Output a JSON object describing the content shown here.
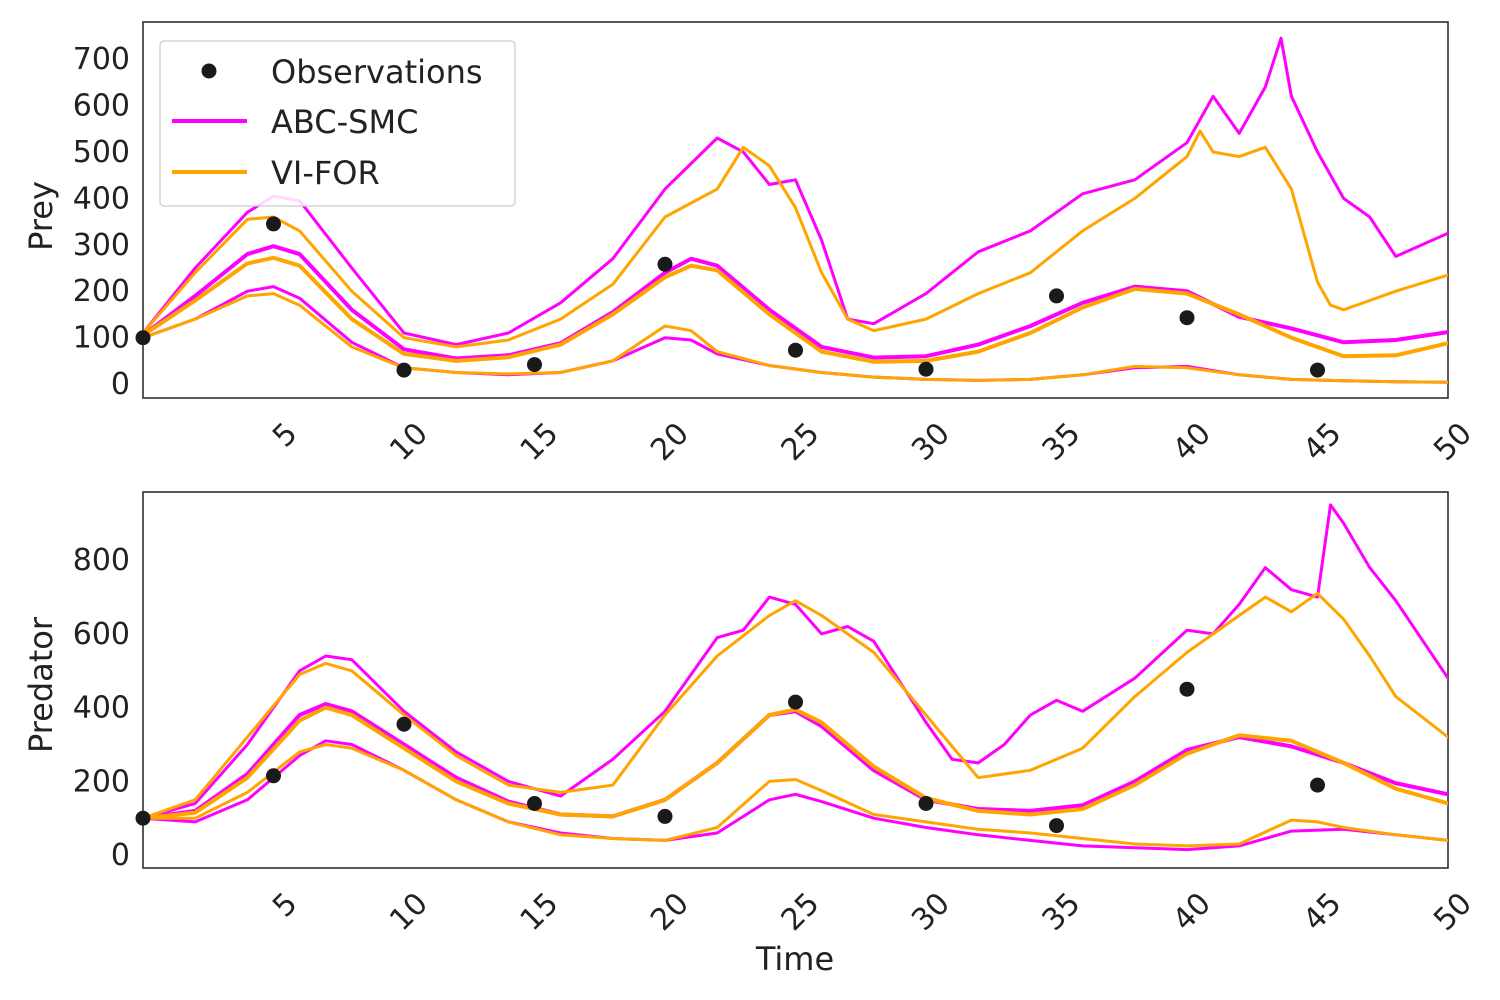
{
  "colors": {
    "observations": "#1a1a1a",
    "abc_smc": "#ff00ff",
    "vi_for": "#ffa500",
    "axes": "#222222"
  },
  "legend": {
    "observations": "Observations",
    "abc_smc": "ABC-SMC",
    "vi_for": "VI-FOR"
  },
  "chart_data": [
    {
      "type": "line",
      "ylabel": "Prey",
      "xlabel": "",
      "xlim": [
        0,
        50
      ],
      "ylim": [
        -30,
        780
      ],
      "xticks": [
        5,
        10,
        15,
        20,
        25,
        30,
        35,
        40,
        45,
        50
      ],
      "yticks": [
        0,
        100,
        200,
        300,
        400,
        500,
        600,
        700
      ],
      "grid": false,
      "legend_position": "top-left",
      "observations": {
        "name": "Observations",
        "x": [
          0,
          5,
          10,
          15,
          20,
          25,
          30,
          35,
          40,
          45
        ],
        "y": [
          100,
          345,
          30,
          42,
          258,
          73,
          32,
          190,
          143,
          30
        ]
      },
      "series": [
        {
          "name": "ABC-SMC",
          "group": "abc",
          "role": "mean",
          "x": [
            0,
            2,
            4,
            5,
            6,
            8,
            10,
            12,
            14,
            16,
            18,
            20,
            21,
            22,
            24,
            26,
            28,
            30,
            32,
            34,
            36,
            38,
            40,
            42,
            44,
            46,
            48,
            50
          ],
          "y": [
            105,
            190,
            280,
            297,
            280,
            160,
            75,
            55,
            62,
            88,
            155,
            240,
            270,
            255,
            160,
            80,
            57,
            60,
            85,
            125,
            175,
            210,
            200,
            145,
            120,
            90,
            95,
            112
          ]
        },
        {
          "group": "abc",
          "role": "upper",
          "x": [
            0,
            2,
            4,
            5,
            6,
            8,
            10,
            12,
            14,
            16,
            18,
            20,
            22,
            23,
            24,
            25,
            26,
            27,
            28,
            30,
            32,
            34,
            36,
            38,
            40,
            41,
            42,
            43,
            43.6,
            44,
            45,
            46,
            47,
            48,
            50
          ],
          "y": [
            110,
            250,
            370,
            405,
            395,
            250,
            110,
            85,
            110,
            175,
            270,
            420,
            530,
            500,
            430,
            440,
            310,
            140,
            130,
            195,
            285,
            330,
            410,
            440,
            520,
            620,
            540,
            640,
            745,
            620,
            500,
            400,
            360,
            275,
            325
          ]
        },
        {
          "group": "abc",
          "role": "lower",
          "x": [
            0,
            2,
            4,
            5,
            6,
            8,
            10,
            12,
            14,
            16,
            18,
            20,
            21,
            22,
            24,
            26,
            28,
            30,
            32,
            34,
            36,
            38,
            40,
            42,
            44,
            46,
            48,
            50
          ],
          "y": [
            100,
            140,
            200,
            210,
            185,
            90,
            35,
            25,
            20,
            25,
            50,
            100,
            95,
            65,
            40,
            25,
            15,
            10,
            8,
            10,
            20,
            35,
            38,
            20,
            10,
            7,
            5,
            4
          ]
        },
        {
          "name": "VI-FOR",
          "group": "vi",
          "role": "mean",
          "x": [
            0,
            2,
            4,
            5,
            6,
            8,
            10,
            12,
            14,
            16,
            18,
            20,
            21,
            22,
            24,
            26,
            28,
            30,
            32,
            34,
            36,
            38,
            40,
            42,
            44,
            46,
            48,
            50
          ],
          "y": [
            105,
            180,
            260,
            272,
            255,
            140,
            65,
            50,
            58,
            85,
            150,
            230,
            255,
            245,
            150,
            70,
            48,
            50,
            70,
            110,
            165,
            205,
            195,
            150,
            100,
            60,
            62,
            88
          ]
        },
        {
          "group": "vi",
          "role": "upper",
          "x": [
            0,
            2,
            4,
            5,
            6,
            8,
            10,
            12,
            14,
            16,
            18,
            20,
            22,
            23,
            24,
            25,
            26,
            27,
            28,
            30,
            32,
            34,
            36,
            38,
            40,
            40.5,
            41,
            42,
            43,
            44,
            45,
            45.5,
            46,
            47,
            48,
            50
          ],
          "y": [
            110,
            240,
            355,
            360,
            330,
            200,
            100,
            80,
            95,
            140,
            215,
            360,
            420,
            510,
            470,
            380,
            240,
            140,
            115,
            140,
            195,
            240,
            330,
            400,
            490,
            545,
            500,
            490,
            510,
            420,
            220,
            170,
            160,
            180,
            200,
            235
          ]
        },
        {
          "group": "vi",
          "role": "lower",
          "x": [
            0,
            2,
            4,
            5,
            6,
            8,
            10,
            12,
            14,
            16,
            18,
            20,
            21,
            22,
            24,
            26,
            28,
            30,
            32,
            34,
            36,
            38,
            40,
            42,
            44,
            46,
            48,
            50
          ],
          "y": [
            100,
            140,
            190,
            195,
            170,
            80,
            35,
            25,
            22,
            25,
            50,
            125,
            115,
            70,
            40,
            25,
            15,
            10,
            8,
            10,
            20,
            38,
            35,
            20,
            10,
            7,
            5,
            4
          ]
        }
      ]
    },
    {
      "type": "line",
      "ylabel": "Predator",
      "xlabel": "Time",
      "xlim": [
        0,
        50
      ],
      "ylim": [
        -35,
        985
      ],
      "xticks": [
        5,
        10,
        15,
        20,
        25,
        30,
        35,
        40,
        45,
        50
      ],
      "yticks": [
        0,
        200,
        400,
        600,
        800
      ],
      "grid": false,
      "observations": {
        "name": "Observations",
        "x": [
          0,
          5,
          10,
          15,
          20,
          25,
          30,
          35,
          40,
          45
        ],
        "y": [
          100,
          215,
          355,
          140,
          105,
          415,
          140,
          80,
          450,
          190
        ]
      },
      "series": [
        {
          "group": "abc",
          "role": "mean",
          "x": [
            0,
            2,
            4,
            6,
            7,
            8,
            10,
            12,
            14,
            16,
            18,
            20,
            22,
            24,
            25,
            26,
            28,
            30,
            32,
            34,
            36,
            38,
            40,
            42,
            44,
            46,
            48,
            50
          ],
          "y": [
            100,
            120,
            220,
            380,
            410,
            390,
            300,
            210,
            145,
            110,
            105,
            150,
            250,
            380,
            390,
            350,
            230,
            150,
            125,
            120,
            135,
            200,
            285,
            320,
            295,
            250,
            195,
            165
          ]
        },
        {
          "group": "abc",
          "role": "upper",
          "x": [
            0,
            2,
            4,
            6,
            7,
            8,
            10,
            12,
            14,
            16,
            18,
            20,
            22,
            23,
            24,
            25,
            26,
            27,
            28,
            30,
            31,
            32,
            33,
            34,
            35,
            36,
            38,
            40,
            41,
            42,
            43,
            44,
            45,
            45.5,
            46,
            47,
            48,
            50
          ],
          "y": [
            100,
            140,
            300,
            500,
            540,
            530,
            390,
            280,
            200,
            160,
            260,
            390,
            590,
            610,
            700,
            680,
            600,
            620,
            580,
            360,
            260,
            250,
            300,
            380,
            420,
            390,
            480,
            610,
            600,
            680,
            780,
            720,
            700,
            950,
            900,
            780,
            690,
            480
          ]
        },
        {
          "group": "abc",
          "role": "lower",
          "x": [
            0,
            2,
            4,
            6,
            7,
            8,
            10,
            12,
            14,
            16,
            18,
            20,
            22,
            24,
            25,
            26,
            28,
            30,
            32,
            34,
            36,
            38,
            40,
            42,
            44,
            46,
            48,
            50
          ],
          "y": [
            100,
            90,
            150,
            270,
            310,
            300,
            230,
            150,
            90,
            60,
            45,
            40,
            60,
            150,
            165,
            145,
            100,
            75,
            55,
            40,
            25,
            20,
            15,
            25,
            65,
            70,
            55,
            40
          ]
        },
        {
          "group": "vi",
          "role": "mean",
          "x": [
            0,
            2,
            4,
            6,
            7,
            8,
            10,
            12,
            14,
            16,
            18,
            20,
            22,
            24,
            25,
            26,
            28,
            30,
            32,
            34,
            36,
            38,
            40,
            42,
            44,
            46,
            48,
            50
          ],
          "y": [
            100,
            115,
            210,
            365,
            400,
            380,
            290,
            200,
            140,
            110,
            105,
            150,
            250,
            380,
            395,
            360,
            240,
            155,
            120,
            110,
            125,
            190,
            275,
            325,
            310,
            250,
            180,
            140
          ]
        },
        {
          "group": "vi",
          "role": "upper",
          "x": [
            0,
            2,
            4,
            6,
            7,
            8,
            10,
            12,
            14,
            16,
            18,
            20,
            22,
            24,
            25,
            26,
            28,
            30,
            32,
            34,
            36,
            38,
            40,
            42,
            43,
            44,
            45,
            46,
            47,
            48,
            50
          ],
          "y": [
            100,
            150,
            320,
            490,
            520,
            500,
            380,
            270,
            190,
            170,
            190,
            380,
            540,
            650,
            690,
            650,
            550,
            380,
            210,
            230,
            290,
            430,
            550,
            650,
            700,
            660,
            710,
            640,
            540,
            430,
            320
          ]
        },
        {
          "group": "vi",
          "role": "lower",
          "x": [
            0,
            2,
            4,
            6,
            7,
            8,
            10,
            12,
            14,
            16,
            18,
            20,
            22,
            24,
            25,
            26,
            28,
            30,
            32,
            34,
            36,
            38,
            40,
            42,
            44,
            45,
            46,
            48,
            50
          ],
          "y": [
            100,
            100,
            170,
            280,
            300,
            290,
            230,
            150,
            90,
            55,
            45,
            40,
            75,
            200,
            205,
            175,
            110,
            90,
            70,
            60,
            45,
            30,
            25,
            30,
            95,
            90,
            75,
            55,
            40
          ]
        }
      ]
    }
  ]
}
